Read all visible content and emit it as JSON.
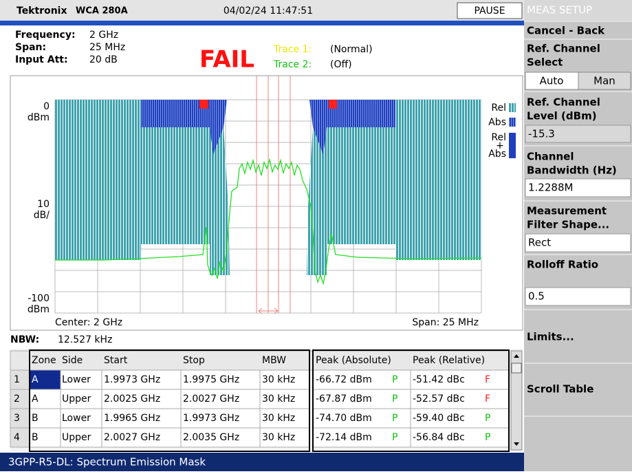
{
  "header": {
    "brand": "Tektronix",
    "model": "WCA 280A",
    "datetime": "04/02/24 11:47:51",
    "status": "PAUSE"
  },
  "settings": [
    {
      "label": "Frequency:",
      "value": "2 GHz"
    },
    {
      "label": "Span:",
      "value": "25 MHz"
    },
    {
      "label": "Input Att:",
      "value": "20 dB"
    }
  ],
  "result": "FAIL",
  "traces": [
    {
      "label": "Trace 1:",
      "state": "(Normal)"
    },
    {
      "label": "Trace 2:",
      "state": "(Off)"
    }
  ],
  "plot": {
    "y_top": "0",
    "y_top_unit": "dBm",
    "scale": "10",
    "scale_unit": "dB/",
    "y_bottom": "-100",
    "y_bottom_unit": "dBm",
    "center": "Center: 2 GHz",
    "span": "Span: 25 MHz",
    "legend": [
      "Rel",
      "Abs",
      "Rel",
      "+",
      "Abs"
    ]
  },
  "nbw": {
    "label": "NBW:",
    "value": "12.527 kHz"
  },
  "table": {
    "columns": [
      "Zone",
      "Side",
      "Start",
      "Stop",
      "MBW",
      "Peak (Absolute)",
      "Peak (Relative)"
    ],
    "rows": [
      [
        "1",
        "A",
        "Lower",
        "1.9973 GHz",
        "1.9975 GHz",
        "30 kHz",
        "-66.72 dBm",
        "P",
        "-51.42 dBc",
        "F"
      ],
      [
        "2",
        "A",
        "Upper",
        "2.0025 GHz",
        "2.0027 GHz",
        "30 kHz",
        "-67.87 dBm",
        "P",
        "-52.57 dBc",
        "F"
      ],
      [
        "3",
        "B",
        "Lower",
        "1.9965 GHz",
        "1.9973 GHz",
        "30 kHz",
        "-74.70 dBm",
        "P",
        "-59.40 dBc",
        "P"
      ],
      [
        "4",
        "B",
        "Upper",
        "2.0027 GHz",
        "2.0035 GHz",
        "30 kHz",
        "-72.14 dBm",
        "P",
        "-56.84 dBc",
        "P"
      ]
    ]
  },
  "status_bar": "3GPP-R5-DL: Spectrum Emission Mask",
  "menu": {
    "title": "MEAS SETUP",
    "items": [
      {
        "label": [
          "Cancel - Back"
        ]
      },
      {
        "label": [
          "Ref. Channel",
          "Select"
        ],
        "options": [
          "Auto",
          "Man"
        ]
      },
      {
        "label": [
          "Ref. Channel",
          "Level (dBm)"
        ],
        "value": "-15.3"
      },
      {
        "label": [
          "Channel",
          "Bandwidth (Hz)"
        ],
        "value": "1.2288M"
      },
      {
        "label": [
          "Measurement",
          "Filter Shape..."
        ],
        "value": "Rect"
      },
      {
        "label": [
          "Rolloff Ratio"
        ],
        "value": "0.5"
      },
      {
        "label": [
          "Limits..."
        ]
      },
      {
        "label": [
          "Scroll Table"
        ]
      }
    ]
  }
}
